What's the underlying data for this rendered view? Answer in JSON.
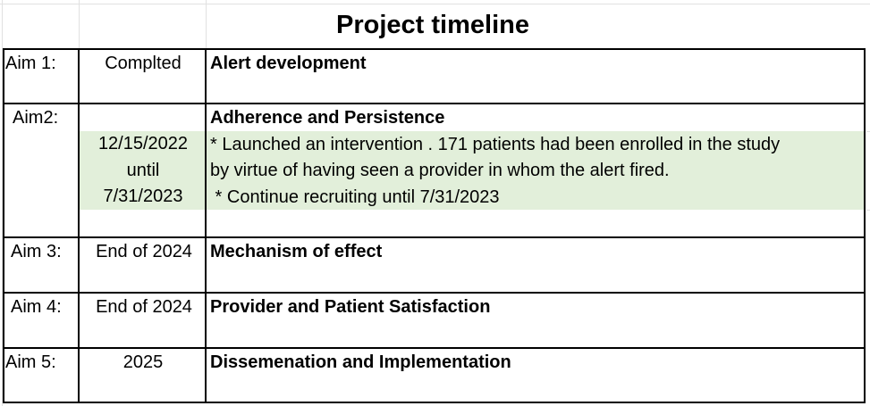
{
  "title": "Project timeline",
  "rows": [
    {
      "aim": "Aim 1:",
      "timing": [
        "Complted"
      ],
      "heading": "Alert development",
      "details": []
    },
    {
      "aim": "Aim2:",
      "timing": [
        "12/15/2022",
        "until",
        "7/31/2023"
      ],
      "heading": "Adherence and Persistence",
      "details": [
        "* Launched an intervention . 171 patients had been enrolled in the study",
        "by virtue of having seen a provider in whom the alert fired.",
        " * Continue recruiting until 7/31/2023"
      ]
    },
    {
      "aim": "Aim 3:",
      "timing": [
        "End of 2024"
      ],
      "heading": "Mechanism of effect",
      "details": []
    },
    {
      "aim": "Aim 4:",
      "timing": [
        "End of 2024"
      ],
      "heading": "Provider and Patient Satisfaction",
      "details": []
    },
    {
      "aim": "Aim 5:",
      "timing": [
        "2025"
      ],
      "heading": "Dissemenation and Implementation",
      "details": []
    }
  ],
  "colors": {
    "highlight": "#e2efda",
    "gridline": "#e1e1e1"
  }
}
